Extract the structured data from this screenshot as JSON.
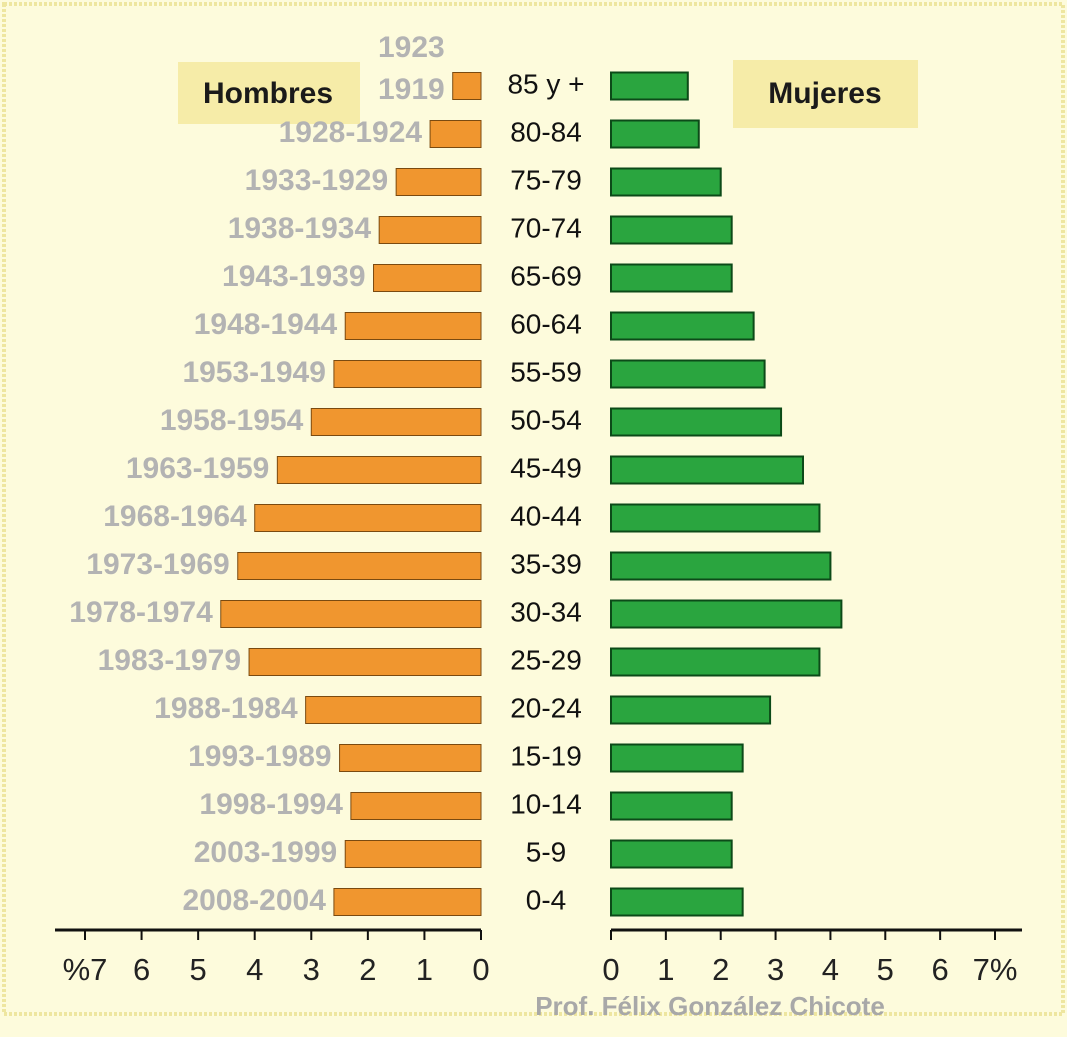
{
  "chart_data": {
    "type": "pyramid",
    "categories": [
      "85 y +",
      "80-84",
      "75-79",
      "70-74",
      "65-69",
      "60-64",
      "55-59",
      "50-54",
      "45-49",
      "40-44",
      "35-39",
      "30-34",
      "25-29",
      "20-24",
      "15-19",
      "10-14",
      "5-9",
      "0-4"
    ],
    "birth_years": [
      [
        "1923",
        "1919"
      ],
      [
        "1928-1924"
      ],
      [
        "1933-1929"
      ],
      [
        "1938-1934"
      ],
      [
        "1943-1939"
      ],
      [
        "1948-1944"
      ],
      [
        "1953-1949"
      ],
      [
        "1958-1954"
      ],
      [
        "1963-1959"
      ],
      [
        "1968-1964"
      ],
      [
        "1973-1969"
      ],
      [
        "1978-1974"
      ],
      [
        "1983-1979"
      ],
      [
        "1988-1984"
      ],
      [
        "1993-1989"
      ],
      [
        "1998-1994"
      ],
      [
        "2003-1999"
      ],
      [
        "2008-2004"
      ]
    ],
    "series": [
      {
        "name": "Hombres",
        "color": "#f0962f",
        "side": "left",
        "values": [
          0.5,
          0.9,
          1.5,
          1.8,
          1.9,
          2.4,
          2.6,
          3.0,
          3.6,
          4.0,
          4.3,
          4.6,
          4.1,
          3.1,
          2.5,
          2.3,
          2.4,
          2.6
        ]
      },
      {
        "name": "Mujeres",
        "color": "#2aa53f",
        "side": "right",
        "values": [
          1.4,
          1.6,
          2.0,
          2.2,
          2.2,
          2.6,
          2.8,
          3.1,
          3.5,
          3.8,
          4.0,
          4.2,
          3.8,
          2.9,
          2.4,
          2.2,
          2.2,
          2.4
        ]
      }
    ],
    "xlim": [
      0,
      7
    ],
    "xticks_left": [
      {
        "value": 7,
        "label": "%7"
      },
      6,
      5,
      4,
      3,
      2,
      1,
      0
    ],
    "xticks_right": [
      0,
      1,
      2,
      3,
      4,
      5,
      6,
      {
        "value": 7,
        "label": "7%"
      }
    ],
    "credit": "Prof. Félix González Chicote"
  }
}
